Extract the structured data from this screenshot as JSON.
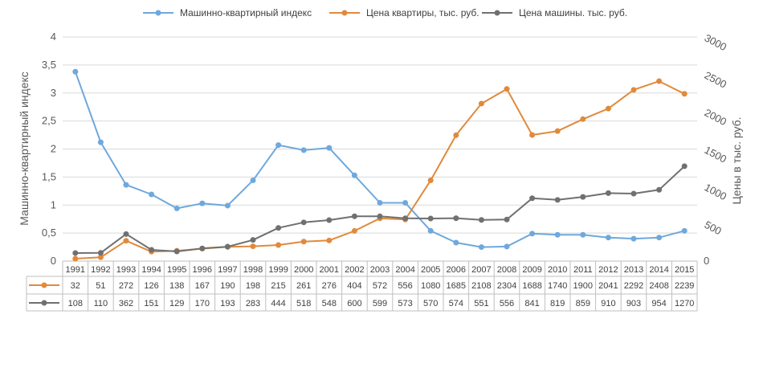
{
  "chart_data": {
    "type": "line",
    "ylabel_left": "Машинно-квартирный индекс",
    "ylabel_right": "Цены в тыс. руб.",
    "ylim_left": [
      0,
      4
    ],
    "ylim_right": [
      0,
      3000
    ],
    "yticks_left": [
      "0",
      "0,5",
      "1",
      "1,5",
      "2",
      "2,5",
      "3",
      "3,5",
      "4"
    ],
    "yticks_right": [
      "0",
      "500",
      "1000",
      "1500",
      "2000",
      "2500",
      "3000"
    ],
    "legend_position": "top",
    "categories": [
      "1991",
      "1992",
      "1993",
      "1994",
      "1995",
      "1996",
      "1997",
      "1998",
      "1999",
      "2000",
      "2001",
      "2002",
      "2003",
      "2004",
      "2005",
      "2006",
      "2007",
      "2008",
      "2009",
      "2010",
      "2011",
      "2012",
      "2013",
      "2014",
      "2015"
    ],
    "series": [
      {
        "name": "Машинно-квартирный индекс",
        "axis": "left",
        "color": "#6fa8dc",
        "values": [
          3.38,
          2.12,
          1.36,
          1.19,
          0.94,
          1.03,
          0.99,
          1.44,
          2.07,
          1.98,
          2.02,
          1.53,
          1.04,
          1.04,
          0.54,
          0.33,
          0.25,
          0.26,
          0.49,
          0.47,
          0.47,
          0.42,
          0.4,
          0.42,
          0.54
        ]
      },
      {
        "name": "Цена квартиры, тыс. руб.",
        "axis": "right",
        "color": "#e08a3c",
        "values": [
          32,
          51,
          272,
          126,
          138,
          167,
          190,
          198,
          215,
          261,
          276,
          404,
          572,
          556,
          1080,
          1685,
          2108,
          2304,
          1688,
          1740,
          1900,
          2041,
          2292,
          2408,
          2239
        ]
      },
      {
        "name": "Цена машины. тыс. руб.",
        "axis": "right",
        "color": "#707070",
        "values": [
          108,
          110,
          362,
          151,
          129,
          170,
          193,
          283,
          444,
          518,
          548,
          600,
          599,
          573,
          570,
          574,
          551,
          556,
          841,
          819,
          859,
          910,
          903,
          954,
          1270
        ]
      }
    ],
    "table_rows": [
      [
        "32",
        "51",
        "272",
        "126",
        "138",
        "167",
        "190",
        "198",
        "215",
        "261",
        "276",
        "404",
        "572",
        "556",
        "1080",
        "1685",
        "2108",
        "2304",
        "1688",
        "1740",
        "1900",
        "2041",
        "2292",
        "2408",
        "2239"
      ],
      [
        "108",
        "110",
        "362",
        "151",
        "129",
        "170",
        "193",
        "283",
        "444",
        "518",
        "548",
        "600",
        "599",
        "573",
        "570",
        "574",
        "551",
        "556",
        "841",
        "819",
        "859",
        "910",
        "903",
        "954",
        "1270"
      ]
    ]
  }
}
